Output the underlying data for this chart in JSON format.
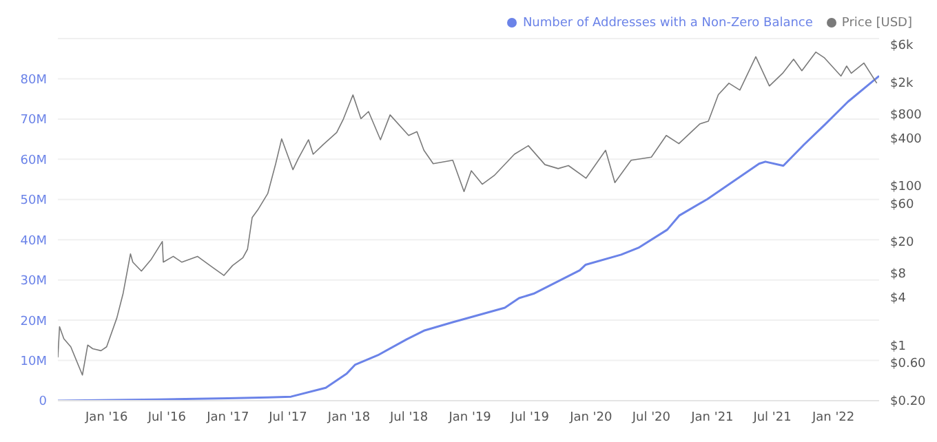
{
  "chart_data": {
    "type": "line",
    "legend": "top right",
    "grid": "y",
    "log": "y2",
    "marker": "none",
    "xlim": [
      "2015-08-07",
      "2022-05-19"
    ],
    "xticks": [
      {
        "value": "2016-01-01",
        "label": "Jan '16"
      },
      {
        "value": "2016-07-01",
        "label": "Jul '16"
      },
      {
        "value": "2017-01-01",
        "label": "Jan '17"
      },
      {
        "value": "2017-07-01",
        "label": "Jul '17"
      },
      {
        "value": "2018-01-01",
        "label": "Jan '18"
      },
      {
        "value": "2018-07-01",
        "label": "Jul '18"
      },
      {
        "value": "2019-01-01",
        "label": "Jan '19"
      },
      {
        "value": "2019-07-01",
        "label": "Jul '19"
      },
      {
        "value": "2020-01-01",
        "label": "Jan '20"
      },
      {
        "value": "2020-07-01",
        "label": "Jul '20"
      },
      {
        "value": "2021-01-01",
        "label": "Jan '21"
      },
      {
        "value": "2021-07-01",
        "label": "Jul '21"
      },
      {
        "value": "2022-01-01",
        "label": "Jan '22"
      }
    ],
    "ylim": [
      0,
      90000000
    ],
    "yticks": [
      {
        "value": 0,
        "label": "0"
      },
      {
        "value": 10000000,
        "label": "10M"
      },
      {
        "value": 20000000,
        "label": "20M"
      },
      {
        "value": 30000000,
        "label": "30M"
      },
      {
        "value": 40000000,
        "label": "40M"
      },
      {
        "value": 50000000,
        "label": "50M"
      },
      {
        "value": 60000000,
        "label": "60M"
      },
      {
        "value": 70000000,
        "label": "70M"
      },
      {
        "value": 80000000,
        "label": "80M"
      },
      {
        "value": 90000000,
        "label": null
      }
    ],
    "y2lim": [
      0.2,
      7100
    ],
    "y2ticks": [
      {
        "value": 0.2,
        "label": "$0.20"
      },
      {
        "value": 0.6,
        "label": "$0.60"
      },
      {
        "value": 1,
        "label": "$1"
      },
      {
        "value": 4,
        "label": "$4"
      },
      {
        "value": 8,
        "label": "$8"
      },
      {
        "value": 20,
        "label": "$20"
      },
      {
        "value": 60,
        "label": "$60"
      },
      {
        "value": 100,
        "label": "$100"
      },
      {
        "value": 400,
        "label": "$400"
      },
      {
        "value": 800,
        "label": "$800"
      },
      {
        "value": 2000,
        "label": "$2k"
      },
      {
        "value": 6000,
        "label": "$6k"
      }
    ],
    "series": [
      {
        "name": "Number of Addresses with a Non-Zero Balance",
        "color": "#6b83e8",
        "axis": "y",
        "x": [
          "2015-08-07",
          "2016-06-01",
          "2017-01-01",
          "2017-05-01",
          "2017-07-10",
          "2017-10-23",
          "2017-12-25",
          "2018-01-19",
          "2018-03-29",
          "2018-06-25",
          "2018-08-15",
          "2018-11-10",
          "2019-04-16",
          "2019-05-29",
          "2019-07-12",
          "2019-11-28",
          "2019-12-16",
          "2020-04-01",
          "2020-05-23",
          "2020-08-18",
          "2020-09-23",
          "2020-12-17",
          "2021-05-22",
          "2021-06-10",
          "2021-08-03",
          "2021-10-04",
          "2021-12-06",
          "2022-02-14",
          "2022-05-19"
        ],
        "values": [
          0,
          300000,
          600000,
          800000,
          1000000,
          3200000,
          6700000,
          8900000,
          11300000,
          15300000,
          17400000,
          19500000,
          23100000,
          25500000,
          26600000,
          32400000,
          33800000,
          36300000,
          38000000,
          42500000,
          46000000,
          50100000,
          58900000,
          59400000,
          58400000,
          63600000,
          68600000,
          74300000,
          80700000
        ]
      },
      {
        "name": "Price [USD]",
        "color": "#7a7a7a",
        "axis": "y2",
        "x": [
          "2015-08-07",
          "2015-08-12",
          "2015-08-25",
          "2015-09-15",
          "2015-10-20",
          "2015-11-05",
          "2015-11-20",
          "2015-12-15",
          "2016-01-01",
          "2016-02-01",
          "2016-02-20",
          "2016-03-13",
          "2016-03-20",
          "2016-04-15",
          "2016-05-15",
          "2016-06-17",
          "2016-06-20",
          "2016-07-20",
          "2016-08-15",
          "2016-10-01",
          "2016-11-15",
          "2016-12-20",
          "2017-01-15",
          "2017-02-15",
          "2017-03-01",
          "2017-03-15",
          "2017-04-01",
          "2017-05-01",
          "2017-05-25",
          "2017-06-12",
          "2017-07-16",
          "2017-08-01",
          "2017-09-01",
          "2017-09-15",
          "2017-10-15",
          "2017-11-25",
          "2017-12-15",
          "2018-01-13",
          "2018-02-06",
          "2018-03-01",
          "2018-04-06",
          "2018-05-05",
          "2018-06-30",
          "2018-07-25",
          "2018-08-15",
          "2018-09-12",
          "2018-11-10",
          "2018-12-14",
          "2019-01-05",
          "2019-02-07",
          "2019-03-15",
          "2019-05-15",
          "2019-06-26",
          "2019-08-15",
          "2019-09-24",
          "2019-10-25",
          "2019-12-17",
          "2020-02-14",
          "2020-03-13",
          "2020-05-01",
          "2020-07-01",
          "2020-08-15",
          "2020-09-22",
          "2020-11-24",
          "2020-12-20",
          "2021-01-19",
          "2021-02-20",
          "2021-03-25",
          "2021-05-12",
          "2021-06-22",
          "2021-08-01",
          "2021-09-03",
          "2021-09-28",
          "2021-11-09",
          "2021-12-04",
          "2022-01-24",
          "2022-02-10",
          "2022-02-24",
          "2022-04-03",
          "2022-05-12"
        ],
        "values": [
          0.7,
          1.7,
          1.2,
          0.95,
          0.42,
          1.0,
          0.9,
          0.85,
          0.95,
          2.2,
          4.5,
          14,
          11,
          8.5,
          12,
          20,
          11,
          13,
          11,
          13,
          9.5,
          7.5,
          10,
          12.5,
          16,
          40,
          50,
          80,
          190,
          390,
          160,
          220,
          380,
          250,
          330,
          470,
          690,
          1390,
          700,
          860,
          380,
          780,
          430,
          480,
          280,
          190,
          210,
          85,
          155,
          105,
          135,
          250,
          320,
          185,
          165,
          180,
          125,
          280,
          110,
          210,
          230,
          430,
          340,
          600,
          650,
          1400,
          1950,
          1600,
          4200,
          1800,
          2600,
          3900,
          2800,
          4800,
          4100,
          2400,
          3200,
          2600,
          3500,
          1950
        ]
      }
    ]
  }
}
